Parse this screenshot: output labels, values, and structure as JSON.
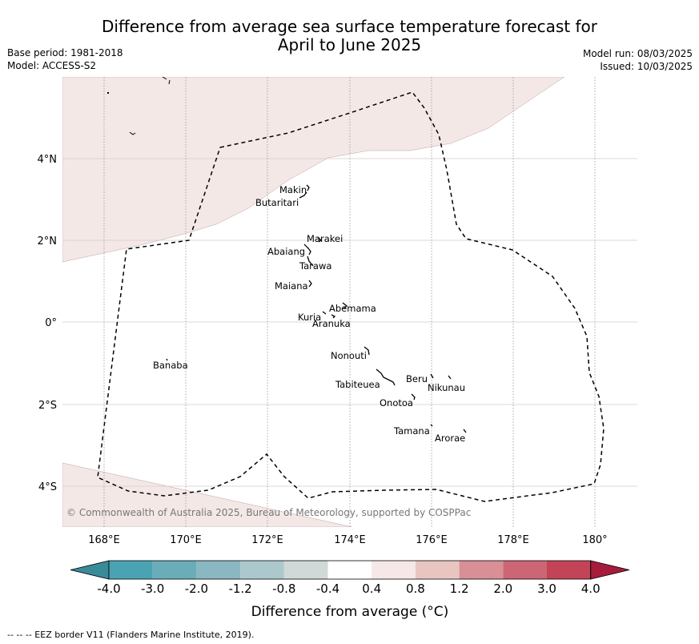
{
  "title_line1": "Difference from average sea surface temperature forecast for",
  "title_line2": "April to June 2025",
  "base_period": "Base period: 1981-2018",
  "model": "Model: ACCESS-S2",
  "model_run": "Model run: 08/03/2025",
  "issued": "Issued: 10/03/2025",
  "lat_ticks": [
    "4°N",
    "2°N",
    "0°",
    "2°S",
    "4°S"
  ],
  "lon_ticks": [
    "168°E",
    "170°E",
    "172°E",
    "174°E",
    "176°E",
    "178°E",
    "180°"
  ],
  "islands": [
    "Makin",
    "Butaritari",
    "Marakei",
    "Abaiang",
    "Tarawa",
    "Maiana",
    "Abemama",
    "Kuria",
    "Aranuka",
    "Banaba",
    "Nonouti",
    "Tabiteuea",
    "Beru",
    "Nikunau",
    "Onotoa",
    "Tamana",
    "Arorae"
  ],
  "copyright": "© Commonwealth of Australia 2025, Bureau of Meteorology, supported by COSPPac",
  "colorbar": {
    "labels": [
      "-4.0",
      "-3.0",
      "-2.0",
      "-1.2",
      "-0.8",
      "-0.4",
      "0.4",
      "0.8",
      "1.2",
      "2.0",
      "3.0",
      "4.0"
    ],
    "colors": [
      "#3a8b9a",
      "#4aa3b2",
      "#6aadb9",
      "#8ab8c2",
      "#abc9cd",
      "#d1d8d8",
      "#ffffff",
      "#f5e8e6",
      "#e9c5c2",
      "#d88f96",
      "#cc6675",
      "#c34457",
      "#a61c3c"
    ],
    "title": "Difference from average (°C)"
  },
  "shading_color": "#f4e8e7",
  "footer": "--  --  -- EEZ border V11 (Flanders Marine Institute, 2019)."
}
